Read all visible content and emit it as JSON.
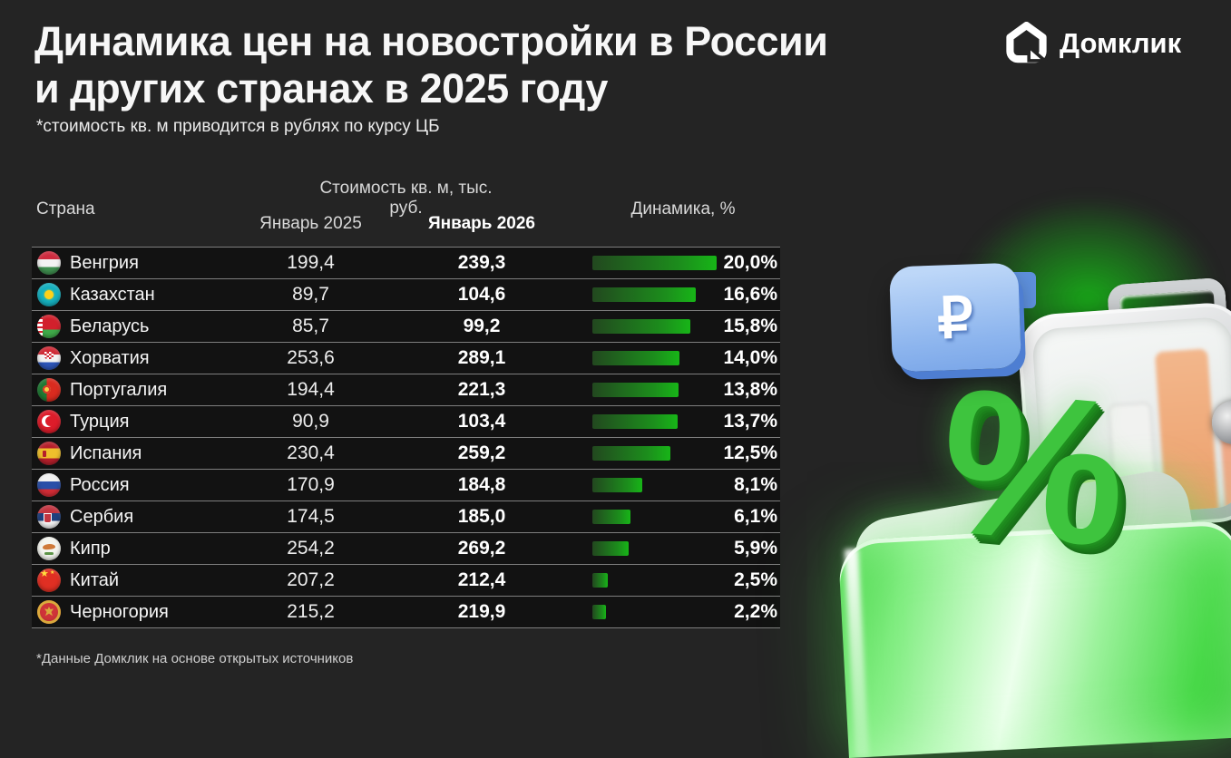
{
  "header": {
    "title_line1": "Динамика цен на новостройки в России",
    "title_line2": "и других странах в 2025 году",
    "subtitle": "*стоимость кв. м приводится в рублях по курсу ЦБ"
  },
  "logo": {
    "text": "Домклик",
    "icon": "domclick-house-icon"
  },
  "table": {
    "columns": {
      "country": "Страна",
      "price_group": "Стоимость кв. м, тыс. руб.",
      "jan_2025": "Январь 2025",
      "jan_2026": "Январь 2026",
      "dynamics": "Динамика, %"
    },
    "bar_max_pct": 20,
    "bar_colors": {
      "start": "#22481f",
      "end": "#17b517"
    },
    "rows": [
      {
        "flag": "hungary",
        "country": "Венгрия",
        "jan_2025": "199,4",
        "jan_2026": "239,3",
        "dynamics": "20,0%",
        "pct": 20.0
      },
      {
        "flag": "kazakhstan",
        "country": "Казахстан",
        "jan_2025": "89,7",
        "jan_2026": "104,6",
        "dynamics": "16,6%",
        "pct": 16.6
      },
      {
        "flag": "belarus",
        "country": "Беларусь",
        "jan_2025": "85,7",
        "jan_2026": "99,2",
        "dynamics": "15,8%",
        "pct": 15.8
      },
      {
        "flag": "croatia",
        "country": "Хорватия",
        "jan_2025": "253,6",
        "jan_2026": "289,1",
        "dynamics": "14,0%",
        "pct": 14.0
      },
      {
        "flag": "portugal",
        "country": "Португалия",
        "jan_2025": "194,4",
        "jan_2026": "221,3",
        "dynamics": "13,8%",
        "pct": 13.8
      },
      {
        "flag": "turkey",
        "country": "Турция",
        "jan_2025": "90,9",
        "jan_2026": "103,4",
        "dynamics": "13,7%",
        "pct": 13.7
      },
      {
        "flag": "spain",
        "country": "Испания",
        "jan_2025": "230,4",
        "jan_2026": "259,2",
        "dynamics": "12,5%",
        "pct": 12.5
      },
      {
        "flag": "russia",
        "country": "Россия",
        "jan_2025": "170,9",
        "jan_2026": "184,8",
        "dynamics": "8,1%",
        "pct": 8.1
      },
      {
        "flag": "serbia",
        "country": "Сербия",
        "jan_2025": "174,5",
        "jan_2026": "185,0",
        "dynamics": "6,1%",
        "pct": 6.1
      },
      {
        "flag": "cyprus",
        "country": "Кипр",
        "jan_2025": "254,2",
        "jan_2026": "269,2",
        "dynamics": "5,9%",
        "pct": 5.9
      },
      {
        "flag": "china",
        "country": "Китай",
        "jan_2025": "207,2",
        "jan_2026": "212,4",
        "dynamics": "2,5%",
        "pct": 2.5
      },
      {
        "flag": "montenegro",
        "country": "Черногория",
        "jan_2025": "215,2",
        "jan_2026": "219,9",
        "dynamics": "2,2%",
        "pct": 2.2
      }
    ]
  },
  "footnote": "*Данные Домклик на основе открытых источников",
  "illustration": {
    "ruble_sign": "₽",
    "percent_sign": "%"
  },
  "chart_data": {
    "type": "bar",
    "orientation": "horizontal",
    "title": "Динамика цен на новостройки в России и других странах в 2025 году",
    "note": "*стоимость кв. м приводится в рублях по курсу ЦБ",
    "source": "*Данные Домклик на основе открытых источников",
    "categories": [
      "Венгрия",
      "Казахстан",
      "Беларусь",
      "Хорватия",
      "Португалия",
      "Турция",
      "Испания",
      "Россия",
      "Сербия",
      "Кипр",
      "Китай",
      "Черногория"
    ],
    "series": [
      {
        "name": "Январь 2025, тыс. руб./кв. м",
        "values": [
          199.4,
          89.7,
          85.7,
          253.6,
          194.4,
          90.9,
          230.4,
          170.9,
          174.5,
          254.2,
          207.2,
          215.2
        ]
      },
      {
        "name": "Январь 2026, тыс. руб./кв. м",
        "values": [
          239.3,
          104.6,
          99.2,
          289.1,
          221.3,
          103.4,
          259.2,
          184.8,
          185.0,
          269.2,
          212.4,
          219.9
        ]
      },
      {
        "name": "Динамика, %",
        "values": [
          20.0,
          16.6,
          15.8,
          14.0,
          13.8,
          13.7,
          12.5,
          8.1,
          6.1,
          5.9,
          2.5,
          2.2
        ]
      }
    ],
    "bar_series_shown_as_bars": "Динамика, %",
    "xlim": [
      0,
      20
    ],
    "grid": false,
    "legend_position": "none",
    "bar_color": "green-gradient"
  }
}
